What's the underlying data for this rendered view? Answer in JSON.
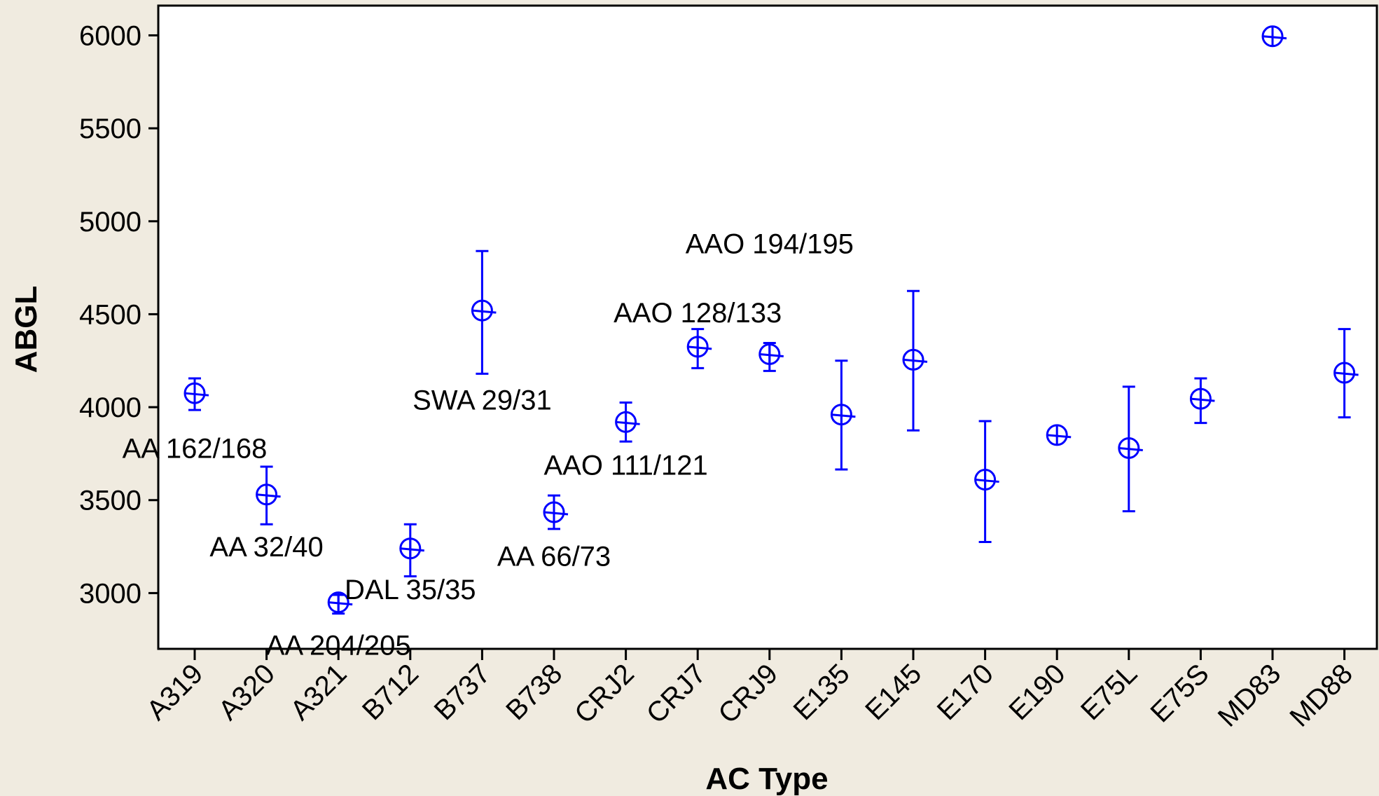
{
  "chart_data": {
    "type": "scatter",
    "title": "",
    "xlabel": "AC Type",
    "ylabel": "ABGL",
    "ylim": [
      2700,
      6160
    ],
    "yticks": [
      3000,
      3500,
      4000,
      4500,
      5000,
      5500,
      6000
    ],
    "grid": false,
    "marker_color": "#0000ff",
    "points": [
      {
        "x": "A319",
        "y": 4075,
        "low": 3985,
        "high": 4155
      },
      {
        "x": "A320",
        "y": 3530,
        "low": 3370,
        "high": 3680
      },
      {
        "x": "A321",
        "y": 2950,
        "low": 2890,
        "high": 2990
      },
      {
        "x": "B712",
        "y": 3240,
        "low": 3090,
        "high": 3370
      },
      {
        "x": "B737",
        "y": 4520,
        "low": 4180,
        "high": 4840
      },
      {
        "x": "B738",
        "y": 3435,
        "low": 3345,
        "high": 3525
      },
      {
        "x": "CRJ2",
        "y": 3920,
        "low": 3815,
        "high": 4025
      },
      {
        "x": "CRJ7",
        "y": 4325,
        "low": 4210,
        "high": 4420
      },
      {
        "x": "CRJ9",
        "y": 4285,
        "low": 4195,
        "high": 4345
      },
      {
        "x": "E135",
        "y": 3960,
        "low": 3665,
        "high": 4250
      },
      {
        "x": "E145",
        "y": 4255,
        "low": 3875,
        "high": 4625
      },
      {
        "x": "E170",
        "y": 3610,
        "low": 3275,
        "high": 3925
      },
      {
        "x": "E190",
        "y": 3850,
        "low": null,
        "high": null
      },
      {
        "x": "E75L",
        "y": 3780,
        "low": 3440,
        "high": 4110
      },
      {
        "x": "E75S",
        "y": 4045,
        "low": 3915,
        "high": 4155
      },
      {
        "x": "MD83",
        "y": 5995,
        "low": null,
        "high": null
      },
      {
        "x": "MD88",
        "y": 4185,
        "low": 3945,
        "high": 4420
      }
    ],
    "annotations": [
      {
        "text": "AA 162/168",
        "x": "A319",
        "y": 3780
      },
      {
        "text": "AA 32/40",
        "x": "A320",
        "y": 3250
      },
      {
        "text": "AA 204/205",
        "x": "A321",
        "y": 2720
      },
      {
        "text": "DAL 35/35",
        "x": "B712",
        "y": 3020
      },
      {
        "text": "SWA 29/31",
        "x": "B737",
        "y": 4040
      },
      {
        "text": "AA 66/73",
        "x": "B738",
        "y": 3200
      },
      {
        "text": "AAO 111/121",
        "x": "CRJ2",
        "y": 3690
      },
      {
        "text": "AAO 128/133",
        "x": "CRJ7",
        "y": 4510
      },
      {
        "text": "AAO 194/195",
        "x": "CRJ9",
        "y": 4880
      }
    ]
  }
}
